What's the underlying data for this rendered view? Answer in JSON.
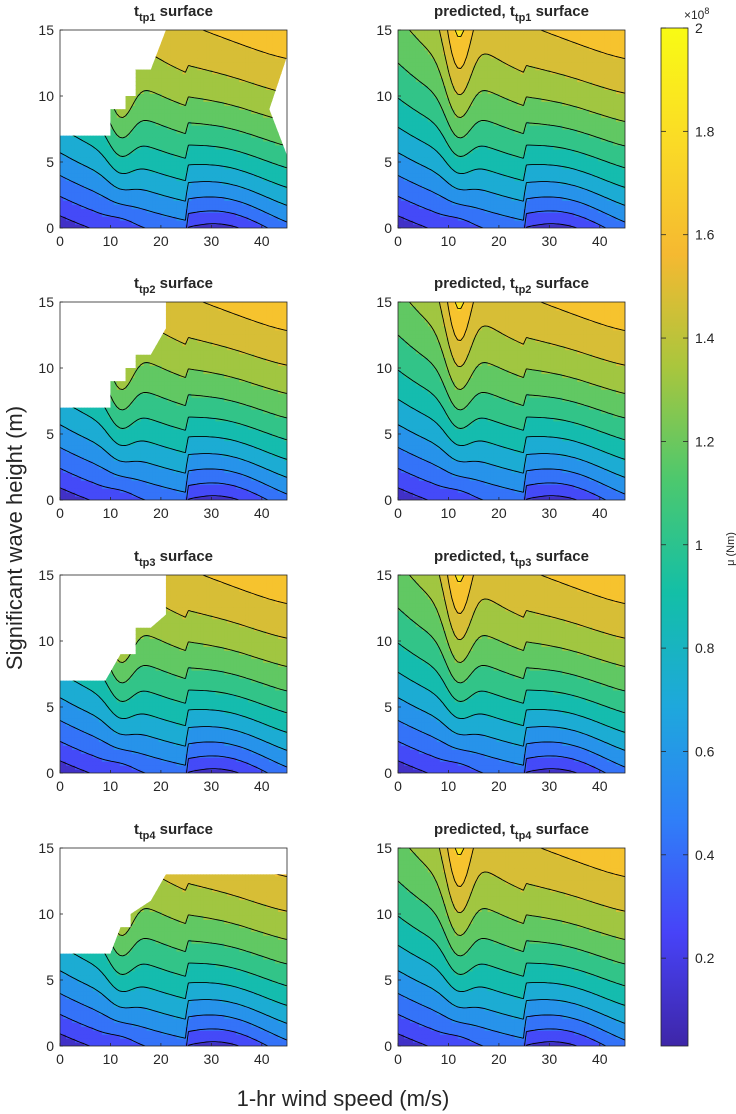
{
  "figure": {
    "x_label": "1-hr wind speed (m/s)",
    "y_label": "Significant wave height (m)"
  },
  "colorbar": {
    "label": "μ (Nm)",
    "multiplier_base": "×10",
    "multiplier_exponent": "8",
    "range": [
      0.03,
      2.0
    ],
    "ticks": [
      "0.2",
      "0.4",
      "0.6",
      "0.8",
      "1",
      "1.2",
      "1.4",
      "1.6",
      "1.8",
      "2"
    ],
    "tick_values": [
      0.2,
      0.4,
      0.6,
      0.8,
      1.0,
      1.2,
      1.4,
      1.6,
      1.8,
      2.0
    ],
    "colormap": "parula",
    "colormap_stops": [
      "#3e26a8",
      "#4743f8",
      "#2f7ff8",
      "#1ea8dc",
      "#13bfa7",
      "#4cc86e",
      "#a9c63d",
      "#f5b931",
      "#fadb26",
      "#f9fb14"
    ]
  },
  "chart_data": {
    "type": "filled-contour",
    "x_label": "1-hr wind speed (m/s)",
    "y_label": "Significant wave height (m)",
    "z_label": "μ (Nm)",
    "z_multiplier": 100000000,
    "xlim": [
      0,
      45
    ],
    "ylim": [
      0,
      15
    ],
    "x_ticks": [
      "0",
      "10",
      "20",
      "30",
      "40"
    ],
    "x_tick_values": [
      0,
      10,
      20,
      30,
      40
    ],
    "y_ticks": [
      "0",
      "5",
      "10",
      "15"
    ],
    "y_tick_values": [
      0,
      5,
      10,
      15
    ],
    "contour_levels": [
      0.2,
      0.35,
      0.5,
      0.65,
      0.8,
      0.95,
      1.1,
      1.25,
      1.4,
      1.55,
      1.7
    ],
    "panels": [
      {
        "id": "tp1-surface",
        "title_main": "t",
        "title_sub": "tp1",
        "title_suffix": " surface",
        "predicted": false,
        "mask": [
          [
            0,
            7
          ],
          [
            6,
            7
          ],
          [
            10,
            7
          ],
          [
            10,
            9
          ],
          [
            13,
            9
          ],
          [
            13,
            10
          ],
          [
            15,
            10
          ],
          [
            15,
            12
          ],
          [
            18,
            12
          ],
          [
            21,
            15
          ],
          [
            45,
            15
          ],
          [
            45,
            13
          ],
          [
            41.5,
            9
          ],
          [
            45,
            5.5
          ]
        ]
      },
      {
        "id": "tp1-predicted",
        "title_main": "predicted, t",
        "title_sub": "tp1",
        "title_suffix": " surface",
        "predicted": true
      },
      {
        "id": "tp2-surface",
        "title_main": "t",
        "title_sub": "tp2",
        "title_suffix": " surface",
        "predicted": false,
        "mask": [
          [
            0,
            7
          ],
          [
            6,
            7
          ],
          [
            10,
            7
          ],
          [
            10,
            9
          ],
          [
            13,
            9
          ],
          [
            13,
            10
          ],
          [
            15,
            10
          ],
          [
            15,
            11
          ],
          [
            18,
            11
          ],
          [
            21,
            13
          ],
          [
            21,
            15
          ]
        ]
      },
      {
        "id": "tp2-predicted",
        "title_main": "predicted, t",
        "title_sub": "tp2",
        "title_suffix": " surface",
        "predicted": true
      },
      {
        "id": "tp3-surface",
        "title_main": "t",
        "title_sub": "tp3",
        "title_suffix": " surface",
        "predicted": false,
        "mask": [
          [
            0,
            7
          ],
          [
            6,
            7
          ],
          [
            9,
            7
          ],
          [
            12,
            9
          ],
          [
            15,
            9
          ],
          [
            15,
            11
          ],
          [
            18,
            11
          ],
          [
            21,
            12
          ],
          [
            21,
            15
          ]
        ]
      },
      {
        "id": "tp3-predicted",
        "title_main": "predicted, t",
        "title_sub": "tp3",
        "title_suffix": " surface",
        "predicted": true
      },
      {
        "id": "tp4-surface",
        "title_main": "t",
        "title_sub": "tp4",
        "title_suffix": " surface",
        "predicted": false,
        "mask": [
          [
            0,
            7
          ],
          [
            6,
            7
          ],
          [
            10,
            7
          ],
          [
            12,
            9
          ],
          [
            14,
            9
          ],
          [
            14,
            10
          ],
          [
            18,
            11
          ],
          [
            21,
            13
          ],
          [
            45,
            13
          ]
        ]
      },
      {
        "id": "tp4-predicted",
        "title_main": "predicted, t",
        "title_sub": "tp4",
        "title_suffix": " surface",
        "predicted": true
      }
    ]
  }
}
